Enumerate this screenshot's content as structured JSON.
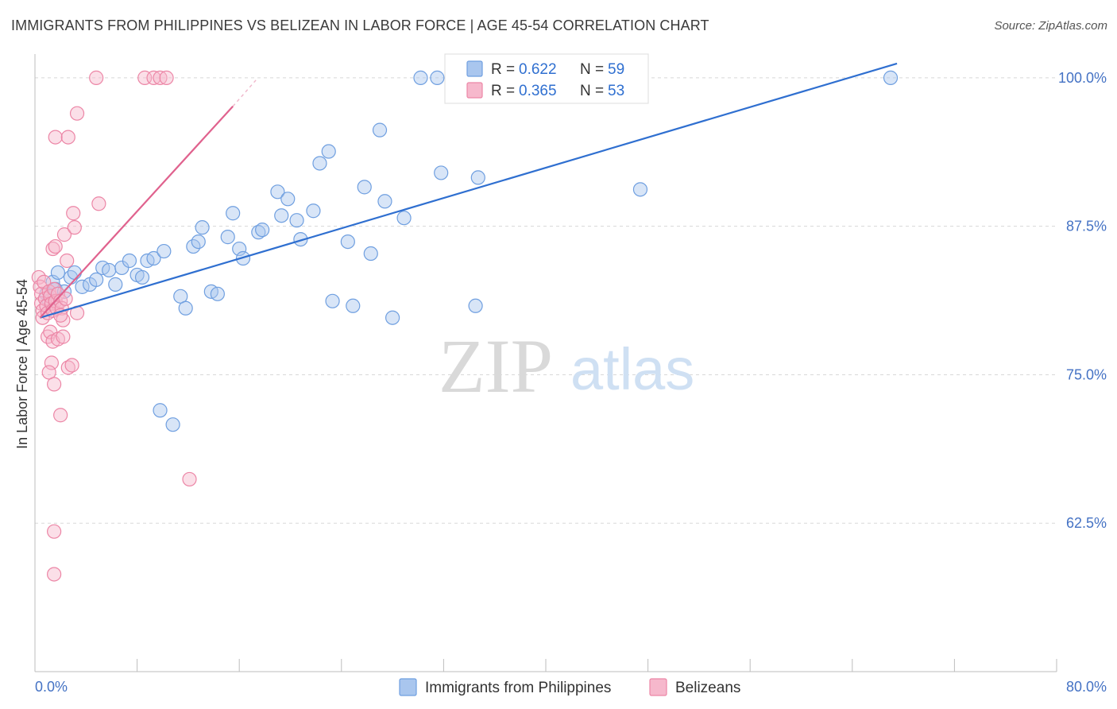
{
  "title": "IMMIGRANTS FROM PHILIPPINES VS BELIZEAN IN LABOR FORCE | AGE 45-54 CORRELATION CHART",
  "source": "Source: ZipAtlas.com",
  "watermark": {
    "zip": "ZIP",
    "atlas": "atlas"
  },
  "colors": {
    "blue_fill": "#a9c6ee",
    "blue_stroke": "#6f9fe0",
    "blue_line": "#2f6fd0",
    "pink_fill": "#f6b8cc",
    "pink_stroke": "#ec86a6",
    "pink_line": "#e0628e",
    "grid": "#d8d8d8",
    "tick_label": "#4472c4"
  },
  "legend": {
    "rows": [
      {
        "r_label": "R =",
        "r_value": "0.622",
        "n_label": "N =",
        "n_value": "59"
      },
      {
        "r_label": "R =",
        "r_value": "0.365",
        "n_label": "N =",
        "n_value": "53"
      }
    ]
  },
  "chart_data": {
    "type": "scatter",
    "title": "IMMIGRANTS FROM PHILIPPINES VS BELIZEAN IN LABOR FORCE | AGE 45-54 CORRELATION CHART",
    "xlabel": "",
    "ylabel": "In Labor Force | Age 45-54",
    "xlim": [
      0,
      80
    ],
    "ylim": [
      50,
      102
    ],
    "x_tick_labels": [
      "0.0%",
      "80.0%"
    ],
    "y_ticks": [
      62.5,
      75.0,
      87.5,
      100.0
    ],
    "y_tick_labels": [
      "62.5%",
      "75.0%",
      "87.5%",
      "100.0%"
    ],
    "grid": true,
    "legend_position": "bottom",
    "series": [
      {
        "name": "Immigrants from Philippines",
        "color": "blue",
        "r": 0.622,
        "n": 59,
        "trend": {
          "x": [
            0.4,
            67.5
          ],
          "y": [
            79.8,
            101.2
          ]
        },
        "points": [
          [
            0.9,
            81.8
          ],
          [
            1.1,
            81.2
          ],
          [
            1.4,
            82.8
          ],
          [
            1.6,
            82.2
          ],
          [
            1.8,
            83.6
          ],
          [
            2.3,
            82.0
          ],
          [
            2.8,
            83.2
          ],
          [
            3.1,
            83.6
          ],
          [
            3.7,
            82.4
          ],
          [
            4.3,
            82.6
          ],
          [
            4.8,
            83.0
          ],
          [
            5.3,
            84.0
          ],
          [
            5.8,
            83.8
          ],
          [
            6.3,
            82.6
          ],
          [
            6.8,
            84.0
          ],
          [
            7.4,
            84.6
          ],
          [
            8.0,
            83.4
          ],
          [
            8.4,
            83.2
          ],
          [
            8.8,
            84.6
          ],
          [
            9.3,
            84.8
          ],
          [
            10.1,
            85.4
          ],
          [
            9.8,
            72.0
          ],
          [
            10.8,
            70.8
          ],
          [
            11.4,
            81.6
          ],
          [
            11.8,
            80.6
          ],
          [
            12.4,
            85.8
          ],
          [
            12.8,
            86.2
          ],
          [
            13.1,
            87.4
          ],
          [
            13.8,
            82.0
          ],
          [
            14.3,
            81.8
          ],
          [
            15.1,
            86.6
          ],
          [
            15.5,
            88.6
          ],
          [
            16.0,
            85.6
          ],
          [
            16.3,
            84.8
          ],
          [
            17.5,
            87.0
          ],
          [
            17.8,
            87.2
          ],
          [
            19.0,
            90.4
          ],
          [
            19.3,
            88.4
          ],
          [
            19.8,
            89.8
          ],
          [
            20.5,
            88.0
          ],
          [
            20.8,
            86.4
          ],
          [
            21.8,
            88.8
          ],
          [
            22.3,
            92.8
          ],
          [
            23.0,
            93.8
          ],
          [
            23.3,
            81.2
          ],
          [
            24.5,
            86.2
          ],
          [
            24.9,
            80.8
          ],
          [
            25.8,
            90.8
          ],
          [
            26.3,
            85.2
          ],
          [
            27.0,
            95.6
          ],
          [
            27.4,
            89.6
          ],
          [
            28.0,
            79.8
          ],
          [
            28.9,
            88.2
          ],
          [
            30.2,
            100.0
          ],
          [
            31.5,
            100.0
          ],
          [
            31.8,
            92.0
          ],
          [
            34.7,
            91.6
          ],
          [
            34.5,
            80.8
          ],
          [
            47.4,
            90.6
          ],
          [
            67.0,
            100.0
          ]
        ]
      },
      {
        "name": "Belizeans",
        "color": "pink",
        "r": 0.365,
        "n": 53,
        "trend": {
          "x": [
            0.4,
            15.5
          ],
          "y": [
            79.8,
            97.6
          ]
        },
        "trend_dashed": {
          "x": [
            15.5,
            17.3
          ],
          "y": [
            97.6,
            99.8
          ]
        },
        "points": [
          [
            0.3,
            83.2
          ],
          [
            0.4,
            82.4
          ],
          [
            0.5,
            81.8
          ],
          [
            0.5,
            81.0
          ],
          [
            0.6,
            80.4
          ],
          [
            0.6,
            79.8
          ],
          [
            0.7,
            82.8
          ],
          [
            0.8,
            81.4
          ],
          [
            0.9,
            80.8
          ],
          [
            1.0,
            80.2
          ],
          [
            1.1,
            82.0
          ],
          [
            1.2,
            81.6
          ],
          [
            1.3,
            81.0
          ],
          [
            1.4,
            80.4
          ],
          [
            1.5,
            82.2
          ],
          [
            1.6,
            81.2
          ],
          [
            1.7,
            80.6
          ],
          [
            1.8,
            81.8
          ],
          [
            2.0,
            81.2
          ],
          [
            2.1,
            80.6
          ],
          [
            2.2,
            79.6
          ],
          [
            2.4,
            81.4
          ],
          [
            1.0,
            78.2
          ],
          [
            1.2,
            78.6
          ],
          [
            1.4,
            77.8
          ],
          [
            1.8,
            78.0
          ],
          [
            2.0,
            80.0
          ],
          [
            2.2,
            78.2
          ],
          [
            1.3,
            76.0
          ],
          [
            1.1,
            75.2
          ],
          [
            1.5,
            74.2
          ],
          [
            2.6,
            75.6
          ],
          [
            2.9,
            75.8
          ],
          [
            2.0,
            71.6
          ],
          [
            1.4,
            85.6
          ],
          [
            1.6,
            85.8
          ],
          [
            2.3,
            86.8
          ],
          [
            2.5,
            84.6
          ],
          [
            3.1,
            87.4
          ],
          [
            3.0,
            88.6
          ],
          [
            3.3,
            80.2
          ],
          [
            5.0,
            89.4
          ],
          [
            1.6,
            95.0
          ],
          [
            2.6,
            95.0
          ],
          [
            3.3,
            97.0
          ],
          [
            4.8,
            100.0
          ],
          [
            8.6,
            100.0
          ],
          [
            9.3,
            100.0
          ],
          [
            9.8,
            100.0
          ],
          [
            10.3,
            100.0
          ],
          [
            12.1,
            66.2
          ],
          [
            1.5,
            61.8
          ],
          [
            1.5,
            58.2
          ]
        ]
      }
    ]
  }
}
